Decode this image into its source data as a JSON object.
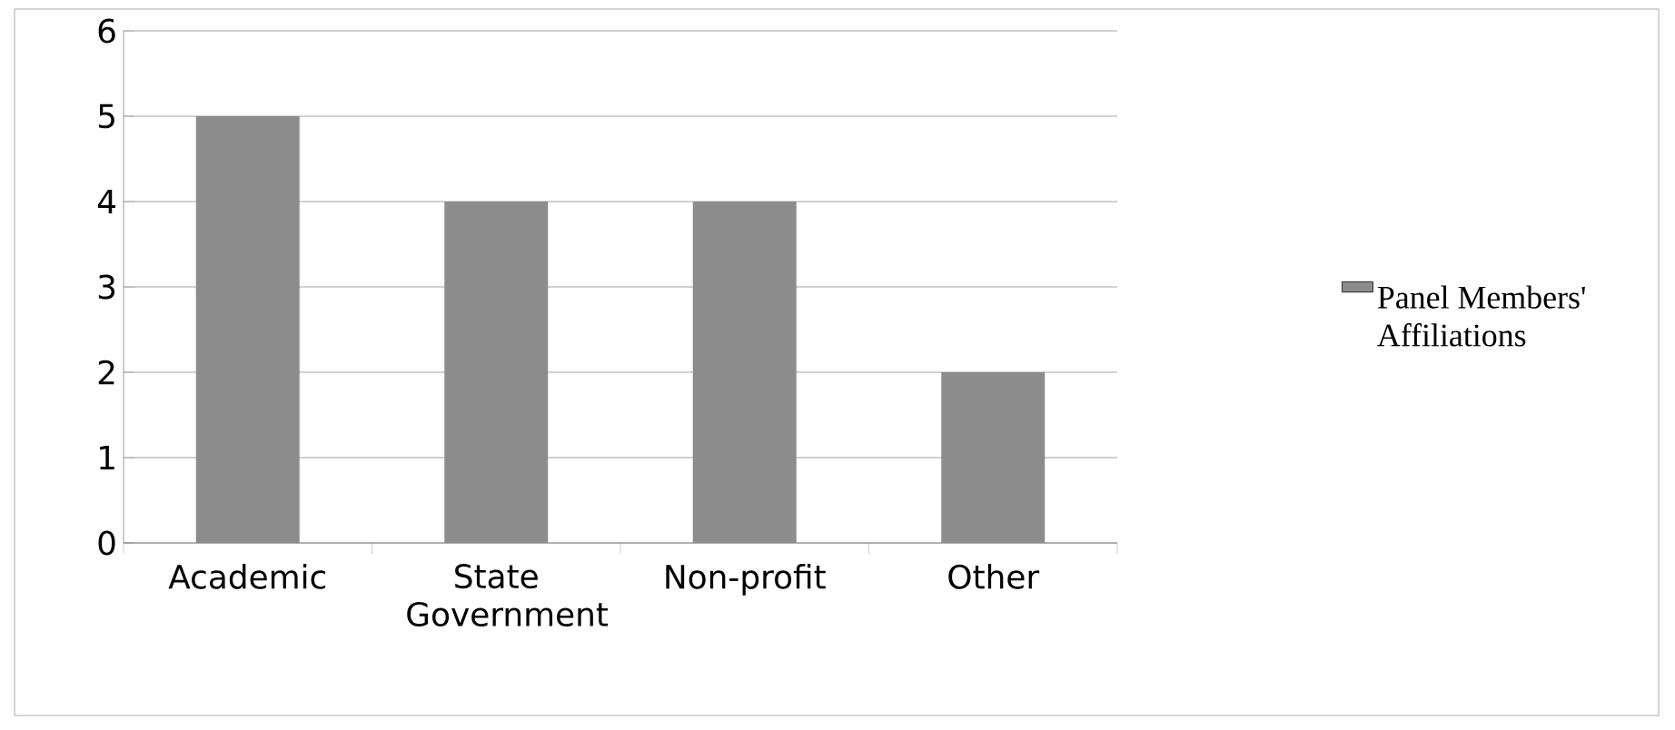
{
  "chart_data": {
    "type": "bar",
    "categories": [
      "Academic",
      "State Government",
      "Non-profit",
      "Other"
    ],
    "series": [
      {
        "name": "Panel Members' Affiliations",
        "color": "#8c8c8c",
        "values": [
          5,
          4,
          4,
          2
        ]
      }
    ],
    "ylim": [
      0,
      6
    ],
    "yticks": [
      0,
      1,
      2,
      3,
      4,
      5,
      6
    ],
    "grid": "y",
    "legend": "right"
  }
}
